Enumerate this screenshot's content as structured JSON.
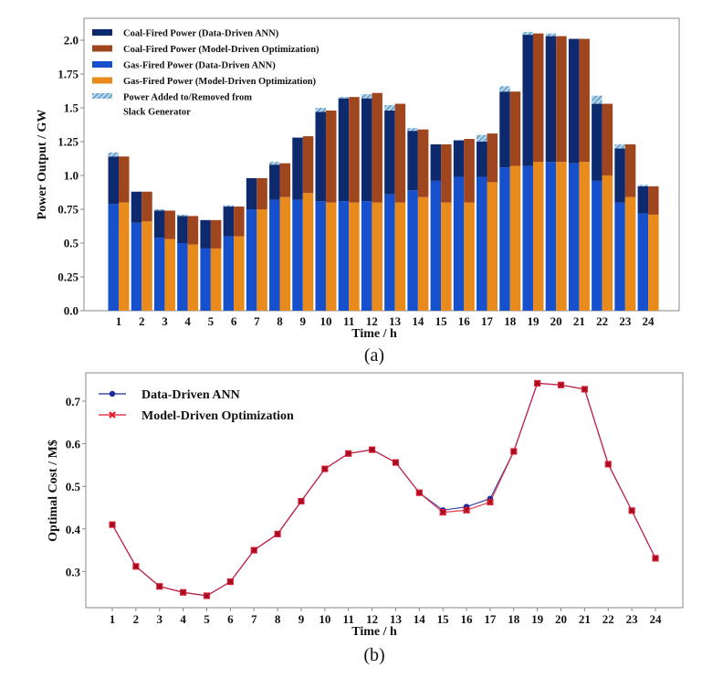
{
  "chart_data": [
    {
      "type": "bar",
      "subtype": "grouped-stacked",
      "panel_label": "(a)",
      "title": "",
      "xlabel": "Time / h",
      "ylabel": "Power Output / GW",
      "ylim": [
        0,
        2.1
      ],
      "yticks": [
        "0.0",
        "0.25",
        "0.5",
        "0.75",
        "1.0",
        "1.25",
        "1.5",
        "1.75",
        "2.0"
      ],
      "ytick_values": [
        0,
        0.25,
        0.5,
        0.75,
        1.0,
        1.25,
        1.5,
        1.75,
        2.0
      ],
      "categories": [
        "1",
        "2",
        "3",
        "4",
        "5",
        "6",
        "7",
        "8",
        "9",
        "10",
        "11",
        "12",
        "13",
        "14",
        "15",
        "16",
        "17",
        "18",
        "19",
        "20",
        "21",
        "22",
        "23",
        "24"
      ],
      "legend_position": "top-left",
      "legend": [
        {
          "label": "Coal-Fired Power (Data-Driven ANN)",
          "color": "#0d2a6e"
        },
        {
          "label": "Coal-Fired Power (Model-Driven Optimization)",
          "color": "#a0461f"
        },
        {
          "label": "Gas-Fired Power (Data-Driven ANN)",
          "color": "#1650cc"
        },
        {
          "label": "Gas-Fired Power (Model-Driven Optimization)",
          "color": "#e88a1c"
        },
        {
          "label": "Power Added to/Removed from",
          "label2": "Slack Generator",
          "color": "#a8d4ee"
        }
      ],
      "series": [
        {
          "name": "Gas-Fired Power (Data-Driven ANN)",
          "values": [
            0.79,
            0.65,
            0.54,
            0.5,
            0.46,
            0.55,
            0.75,
            0.82,
            0.82,
            0.81,
            0.81,
            0.81,
            0.86,
            0.89,
            0.96,
            0.99,
            0.99,
            1.06,
            1.07,
            1.1,
            1.09,
            0.96,
            0.8,
            0.72
          ]
        },
        {
          "name": "Coal-Fired Power (Data-Driven ANN)",
          "values": [
            0.35,
            0.23,
            0.2,
            0.2,
            0.21,
            0.22,
            0.23,
            0.26,
            0.46,
            0.66,
            0.76,
            0.76,
            0.62,
            0.44,
            0.27,
            0.27,
            0.26,
            0.56,
            0.97,
            0.93,
            0.92,
            0.57,
            0.4,
            0.2
          ]
        },
        {
          "name": "Power Added to/Removed from Slack Generator",
          "values": [
            0.03,
            0.0,
            0.01,
            0.01,
            0.0,
            0.01,
            0.0,
            0.02,
            0.0,
            0.03,
            0.01,
            0.03,
            0.04,
            0.02,
            0.0,
            0.0,
            0.05,
            0.04,
            0.02,
            0.02,
            0.0,
            0.06,
            0.03,
            0.01
          ]
        },
        {
          "name": "Gas-Fired Power (Model-Driven Optimization)",
          "values": [
            0.8,
            0.66,
            0.53,
            0.49,
            0.46,
            0.55,
            0.75,
            0.84,
            0.87,
            0.8,
            0.8,
            0.8,
            0.8,
            0.84,
            0.8,
            0.8,
            0.95,
            1.07,
            1.1,
            1.1,
            1.1,
            1.0,
            0.84,
            0.71
          ]
        },
        {
          "name": "Coal-Fired Power (Model-Driven Optimization)",
          "values": [
            0.34,
            0.22,
            0.21,
            0.21,
            0.21,
            0.22,
            0.23,
            0.25,
            0.42,
            0.68,
            0.78,
            0.81,
            0.73,
            0.5,
            0.43,
            0.47,
            0.36,
            0.55,
            0.95,
            0.93,
            0.91,
            0.53,
            0.39,
            0.21
          ]
        }
      ]
    },
    {
      "type": "line",
      "panel_label": "(b)",
      "title": "",
      "xlabel": "Time / h",
      "ylabel": "Optimal Cost / M$",
      "ylim": [
        0.21,
        0.76
      ],
      "yticks": [
        "0.3",
        "0.4",
        "0.5",
        "0.6",
        "0.7"
      ],
      "ytick_values": [
        0.3,
        0.4,
        0.5,
        0.6,
        0.7
      ],
      "x": [
        1,
        2,
        3,
        4,
        5,
        6,
        7,
        8,
        9,
        10,
        11,
        12,
        13,
        14,
        15,
        16,
        17,
        18,
        19,
        20,
        21,
        22,
        23,
        24
      ],
      "legend_position": "top-left",
      "series": [
        {
          "name": "Data-Driven ANN",
          "color": "#1a2a9c",
          "marker": "circle",
          "values": [
            0.41,
            0.312,
            0.265,
            0.251,
            0.243,
            0.276,
            0.35,
            0.388,
            0.465,
            0.541,
            0.577,
            0.586,
            0.556,
            0.485,
            0.444,
            0.452,
            0.471,
            0.582,
            0.742,
            0.738,
            0.728,
            0.552,
            0.443,
            0.331
          ]
        },
        {
          "name": "Model-Driven Optimization",
          "color": "#e0182c",
          "marker": "x-square",
          "values": [
            0.41,
            0.312,
            0.265,
            0.251,
            0.243,
            0.276,
            0.35,
            0.388,
            0.465,
            0.541,
            0.577,
            0.586,
            0.556,
            0.485,
            0.439,
            0.444,
            0.463,
            0.582,
            0.742,
            0.738,
            0.728,
            0.552,
            0.443,
            0.331
          ]
        }
      ]
    }
  ]
}
